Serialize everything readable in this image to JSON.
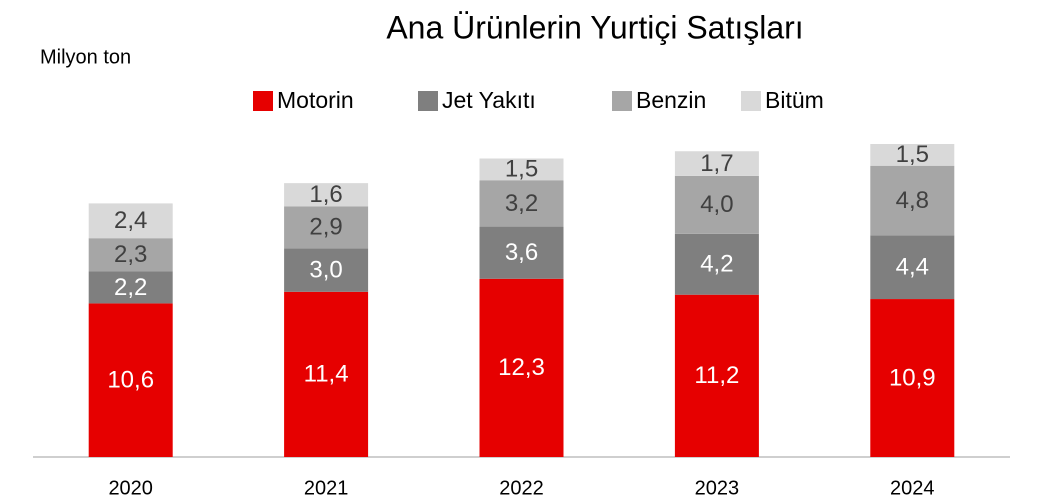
{
  "chart_data": {
    "type": "stacked_bar",
    "title": "Ana Ürünlerin Yurtiçi Satışları",
    "y_label": "Milyon ton",
    "categories": [
      "2020",
      "2021",
      "2022",
      "2023",
      "2024"
    ],
    "series": [
      {
        "name": "Motorin",
        "color": "#e60000",
        "values": [
          10.6,
          11.4,
          12.3,
          11.2,
          10.9
        ],
        "value_labels": [
          "10,6",
          "11,4",
          "12,3",
          "11,2",
          "10,9"
        ]
      },
      {
        "name": "Jet Yakıtı",
        "color": "#7f7f7f",
        "values": [
          2.2,
          3.0,
          3.6,
          4.2,
          4.4
        ],
        "value_labels": [
          "2,2",
          "3,0",
          "3,6",
          "4,2",
          "4,4"
        ]
      },
      {
        "name": "Benzin",
        "color": "#a6a6a6",
        "values": [
          2.3,
          2.9,
          3.2,
          4.0,
          4.8
        ],
        "value_labels": [
          "2,3",
          "2,9",
          "3,2",
          "4,0",
          "4,8"
        ]
      },
      {
        "name": "Bitüm",
        "color": "#d9d9d9",
        "values": [
          2.4,
          1.6,
          1.5,
          1.7,
          1.5
        ],
        "value_labels": [
          "2,4",
          "1,6",
          "1,5",
          "1,7",
          "1,5"
        ]
      }
    ],
    "legend": "top"
  }
}
